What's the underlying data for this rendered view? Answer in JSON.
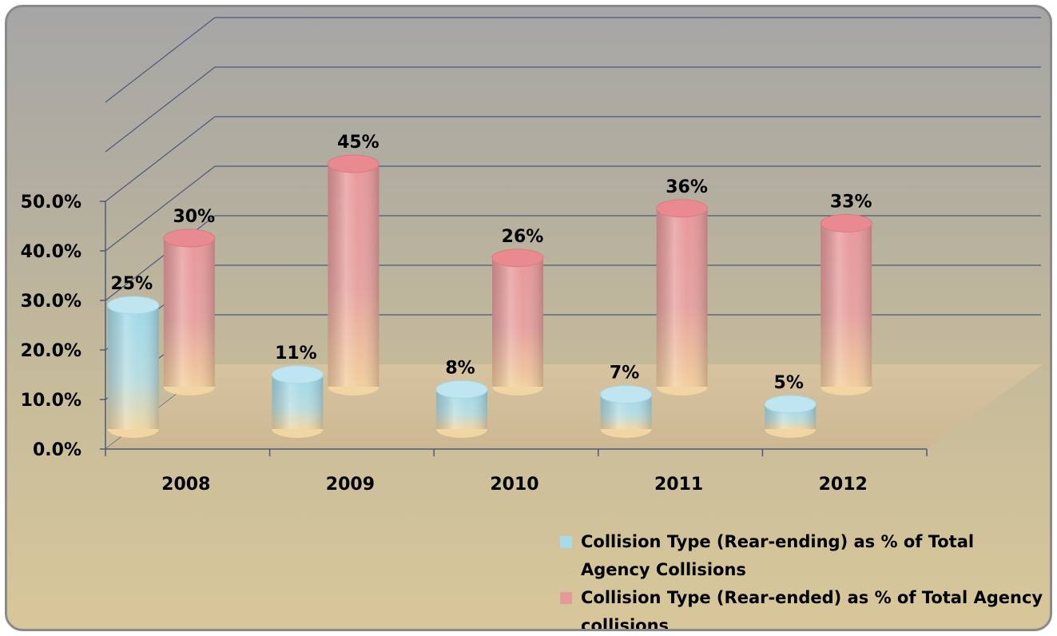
{
  "chart_data": {
    "type": "bar",
    "categories": [
      "2008",
      "2009",
      "2010",
      "2011",
      "2012"
    ],
    "series": [
      {
        "name": "Collision Type (Rear-ending) as % of Total Agency Collisions",
        "values": [
          25,
          11,
          8,
          7,
          5
        ],
        "labels": [
          "25%",
          "11%",
          "8%",
          "7%",
          "5%"
        ],
        "color": "#a6dbea"
      },
      {
        "name": "Collision Type (Rear-ended) as % of Total Agency collisions",
        "values": [
          30,
          45,
          26,
          36,
          33
        ],
        "labels": [
          "30%",
          "45%",
          "26%",
          "36%",
          "33%"
        ],
        "color": "#e59a9a"
      }
    ],
    "y_ticks": [
      "0.0%",
      "10.0%",
      "20.0%",
      "30.0%",
      "40.0%",
      "50.0%"
    ],
    "ylim": [
      0,
      50
    ],
    "grid": true,
    "legend_position": "bottom-right",
    "style": "3d-cylinder"
  }
}
